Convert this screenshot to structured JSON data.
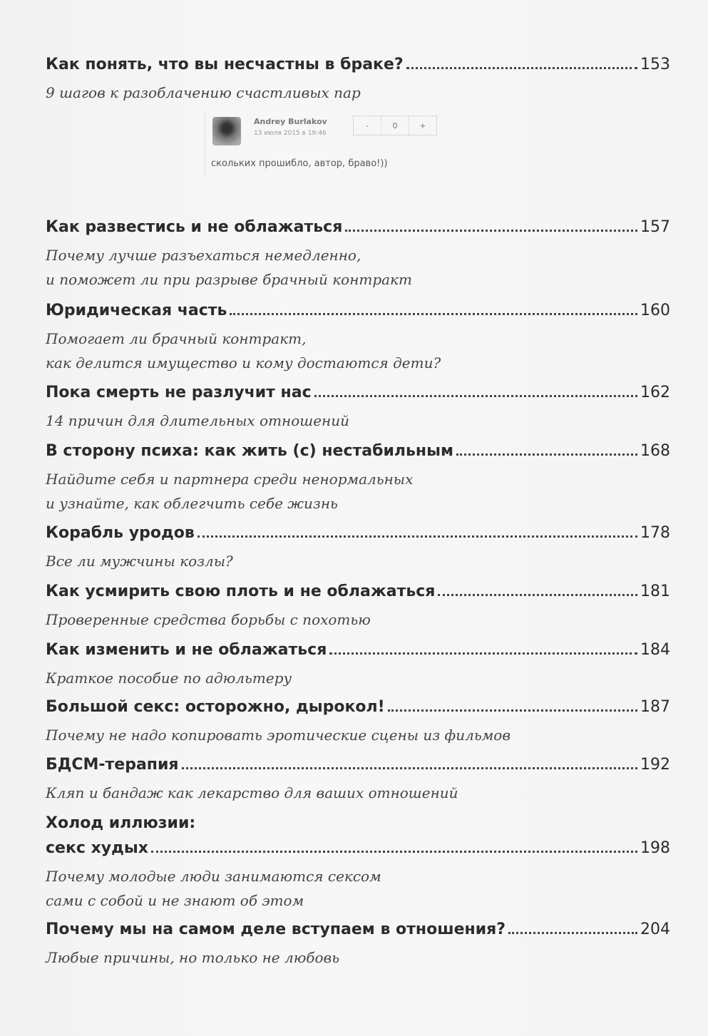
{
  "comment": {
    "author": "Andrey Burlakov",
    "date": "13 июля 2015 в 19:46",
    "vote_minus": "-",
    "vote_count": "0",
    "vote_plus": "+",
    "text": "скольких прошибло, автор, браво!))"
  },
  "entries": [
    {
      "title": "Как понять, что вы несчастны в браке?",
      "page": "153",
      "sub": [
        "9 шагов к разоблачению счастливых пар"
      ]
    },
    {
      "title": "Как развестись и не облажаться",
      "page": "157",
      "sub": [
        "Почему лучше разъехаться немедленно,",
        "и поможет ли при разрыве брачный контракт"
      ]
    },
    {
      "title": "Юридическая часть",
      "page": "160",
      "sub": [
        "Помогает ли брачный контракт,",
        "как делится имущество и кому достаются дети?"
      ]
    },
    {
      "title": "Пока смерть не разлучит нас",
      "page": "162",
      "sub": [
        "14 причин для длительных отношений"
      ]
    },
    {
      "title": "В сторону психа: как жить (с) нестабильным",
      "page": "168",
      "sub": [
        "Найдите себя и партнера среди ненормальных",
        "и узнайте, как облегчить себе жизнь"
      ]
    },
    {
      "title": "Корабль уродов",
      "page": "178",
      "sub": [
        "Все ли мужчины козлы?"
      ]
    },
    {
      "title": "Как усмирить свою плоть и не облажаться",
      "page": "181",
      "sub": [
        "Проверенные средства борьбы с похотью"
      ]
    },
    {
      "title": "Как изменить и не облажаться",
      "page": "184",
      "sub": [
        "Краткое пособие по адюльтеру"
      ]
    },
    {
      "title": "Большой секс: осторожно, дырокол!",
      "page": "187",
      "sub": [
        "Почему не надо копировать эротические сцены из фильмов"
      ]
    },
    {
      "title": "БДСМ-терапия",
      "page": "192",
      "sub": [
        "Кляп и бандаж как лекарство для ваших отношений"
      ]
    },
    {
      "title_first": "Холод иллюзии:",
      "title": "секс худых",
      "page": "198",
      "sub": [
        "Почему молодые люди занимаются сексом",
        "сами с собой и не знают об этом"
      ]
    },
    {
      "title": "Почему мы на самом деле вступаем в отношения?",
      "page": "204",
      "sub": [
        "Любые причины, но только не любовь"
      ]
    }
  ]
}
